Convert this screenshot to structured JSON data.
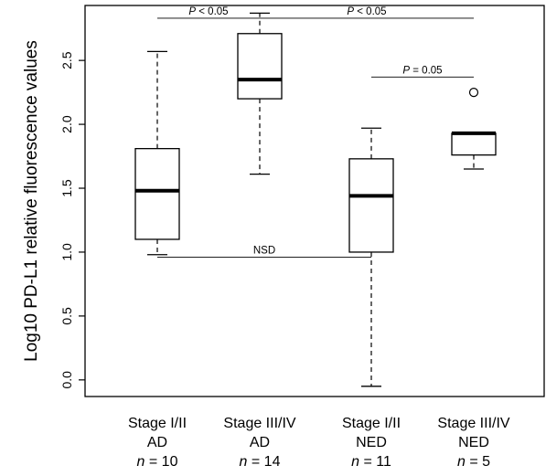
{
  "chart_data": {
    "type": "box",
    "ylabel": "Log10 PD-L1 relative fluorescence values",
    "ylim": [
      -0.13,
      2.93
    ],
    "yticks": [
      "0.0",
      "0.5",
      "1.0",
      "1.5",
      "2.0",
      "2.5"
    ],
    "categories": [
      {
        "lines": [
          "Stage I/II",
          "AD"
        ],
        "n_prefix": "n",
        "n_value": " = 10"
      },
      {
        "lines": [
          "Stage III/IV",
          "AD"
        ],
        "n_prefix": "n",
        "n_value": " = 14"
      },
      {
        "lines": [
          "Stage I/II",
          "NED"
        ],
        "n_prefix": "n",
        "n_value": " = 11"
      },
      {
        "lines": [
          "Stage III/IV",
          "NED"
        ],
        "n_prefix": "n",
        "n_value": " = 5"
      }
    ],
    "boxes": [
      {
        "whisker_low": 0.98,
        "q1": 1.1,
        "median": 1.48,
        "q3": 1.81,
        "whisker_high": 2.57,
        "outliers": []
      },
      {
        "whisker_low": 1.61,
        "q1": 2.2,
        "median": 2.35,
        "q3": 2.71,
        "whisker_high": 2.87,
        "outliers": []
      },
      {
        "whisker_low": -0.05,
        "q1": 1.0,
        "median": 1.44,
        "q3": 1.73,
        "whisker_high": 1.97,
        "outliers": []
      },
      {
        "whisker_low": 1.65,
        "q1": 1.76,
        "median": 1.93,
        "q3": 1.93,
        "whisker_high": 1.93,
        "outliers": [
          2.25
        ]
      }
    ],
    "comparisons": [
      {
        "from": 0,
        "to": 1,
        "y": 2.83,
        "label_italic": "P",
        "label_rest": " < 0.05"
      },
      {
        "from": 1,
        "to": 3,
        "y": 2.83,
        "label_italic": "P",
        "label_rest": " < 0.05"
      },
      {
        "from": 2,
        "to": 3,
        "y": 2.37,
        "label_italic": "P",
        "label_rest": " = 0.05"
      },
      {
        "from": 0,
        "to": 2,
        "y": 0.96,
        "label_italic": "",
        "label_rest": "NSD"
      }
    ]
  }
}
